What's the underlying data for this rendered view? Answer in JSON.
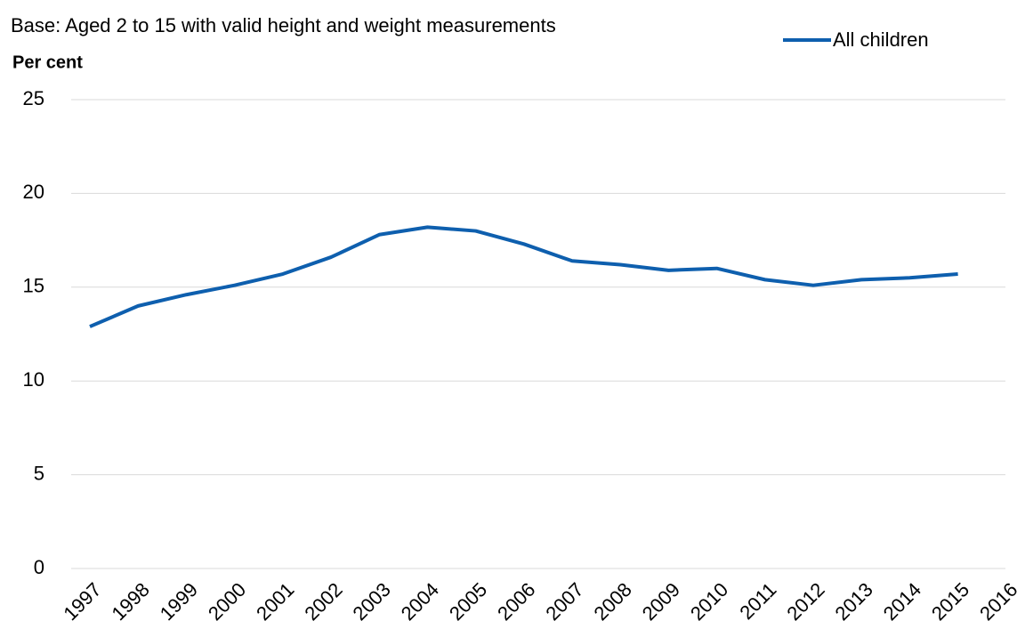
{
  "chart_data": {
    "type": "line",
    "subtitle": "Base: Aged 2 to 15 with valid height and weight measurements",
    "y_label": "Per cent",
    "categories": [
      "1997",
      "1998",
      "1999",
      "2000",
      "2001",
      "2002",
      "2003",
      "2004",
      "2005",
      "2006",
      "2007",
      "2008",
      "2009",
      "2010",
      "2011",
      "2012",
      "2013",
      "2014",
      "2015",
      "2016"
    ],
    "series": [
      {
        "name": "All children",
        "color": "#0e5fae",
        "values": [
          12.9,
          14.0,
          14.6,
          15.1,
          15.7,
          16.6,
          17.8,
          18.2,
          18.0,
          17.3,
          16.4,
          16.2,
          15.9,
          16.0,
          15.4,
          15.1,
          15.4,
          15.5,
          15.7,
          null
        ]
      }
    ],
    "ylim": [
      0,
      25
    ],
    "yticks": [
      0,
      5,
      10,
      15,
      20,
      25
    ],
    "grid": true,
    "legend": "top-right"
  }
}
